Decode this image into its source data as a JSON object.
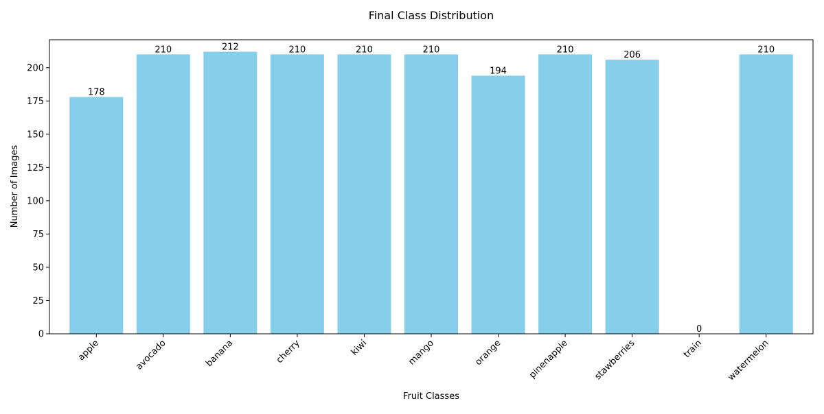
{
  "chart_data": {
    "type": "bar",
    "title": "Final Class Distribution",
    "xlabel": "Fruit Classes",
    "ylabel": "Number of Images",
    "categories": [
      "apple",
      "avocado",
      "banana",
      "cherry",
      "kiwi",
      "mango",
      "orange",
      "pinenapple",
      "stawberries",
      "train",
      "watermelon"
    ],
    "values": [
      178,
      210,
      212,
      210,
      210,
      210,
      194,
      210,
      206,
      0,
      210
    ],
    "ylim": [
      0,
      221
    ],
    "yticks": [
      0,
      25,
      50,
      75,
      100,
      125,
      150,
      175,
      200
    ],
    "bar_color": "#87ceeb",
    "grid": false,
    "data_labels": true
  }
}
